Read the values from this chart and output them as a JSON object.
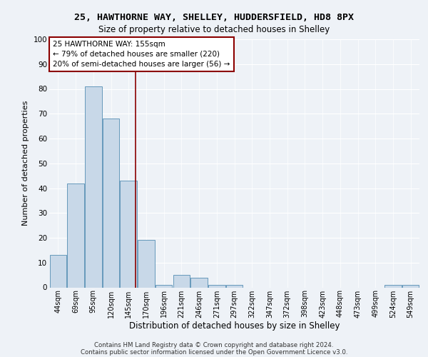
{
  "title1": "25, HAWTHORNE WAY, SHELLEY, HUDDERSFIELD, HD8 8PX",
  "title2": "Size of property relative to detached houses in Shelley",
  "xlabel": "Distribution of detached houses by size in Shelley",
  "ylabel": "Number of detached properties",
  "bin_labels": [
    "44sqm",
    "69sqm",
    "95sqm",
    "120sqm",
    "145sqm",
    "170sqm",
    "196sqm",
    "221sqm",
    "246sqm",
    "271sqm",
    "297sqm",
    "322sqm",
    "347sqm",
    "372sqm",
    "398sqm",
    "423sqm",
    "448sqm",
    "473sqm",
    "499sqm",
    "524sqm",
    "549sqm"
  ],
  "bar_heights": [
    13,
    42,
    81,
    68,
    43,
    19,
    1,
    5,
    4,
    1,
    1,
    0,
    0,
    0,
    0,
    0,
    0,
    0,
    0,
    1,
    1
  ],
  "bar_color": "#c8d8e8",
  "bar_edge_color": "#6699bb",
  "red_line_idx": 4.4,
  "annotation_line1": "25 HAWTHORNE WAY: 155sqm",
  "annotation_line2": "← 79% of detached houses are smaller (220)",
  "annotation_line3": "20% of semi-detached houses are larger (56) →",
  "footer1": "Contains HM Land Registry data © Crown copyright and database right 2024.",
  "footer2": "Contains public sector information licensed under the Open Government Licence v3.0.",
  "ylim": [
    0,
    100
  ],
  "yticks": [
    0,
    10,
    20,
    30,
    40,
    50,
    60,
    70,
    80,
    90,
    100
  ],
  "background_color": "#eef2f7",
  "plot_bg_color": "#eef2f7",
  "title1_fontsize": 9.5,
  "title2_fontsize": 8.5,
  "ylabel_fontsize": 8,
  "xlabel_fontsize": 8.5,
  "tick_fontsize": 7,
  "annot_fontsize": 7.5
}
